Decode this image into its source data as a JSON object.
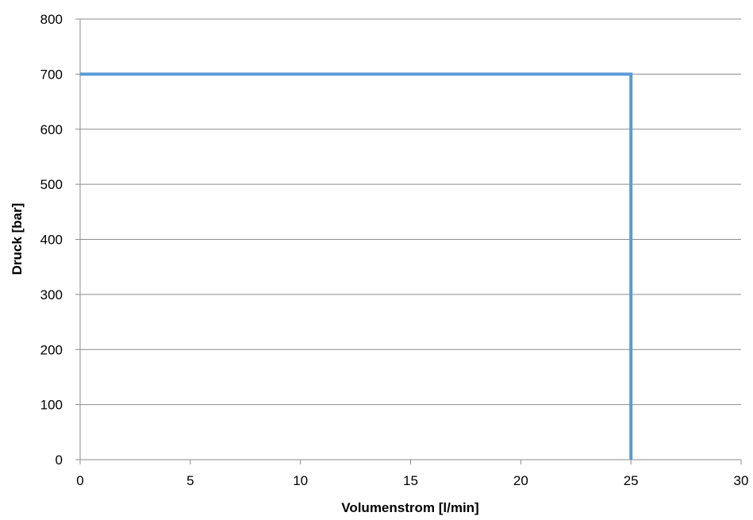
{
  "chart_data": {
    "type": "line",
    "title": "",
    "xlabel": "Volumenstrom [l/min]",
    "ylabel": "Druck  [bar]",
    "xlim": [
      0,
      30
    ],
    "ylim": [
      0,
      800
    ],
    "xticks": [
      0,
      5,
      10,
      15,
      20,
      25,
      30
    ],
    "yticks": [
      0,
      100,
      200,
      300,
      400,
      500,
      600,
      700,
      800
    ],
    "x_tick_labels": [
      "0",
      "5",
      "10",
      "15",
      "20",
      "25",
      "30"
    ],
    "y_tick_labels": [
      "0",
      "100",
      "200",
      "300",
      "400",
      "500",
      "600",
      "700",
      "800"
    ],
    "grid": "horizontal",
    "legend": "none",
    "series": [
      {
        "x": [
          0,
          25,
          25
        ],
        "y": [
          700,
          700,
          0
        ],
        "color": "#5B9BD5"
      }
    ]
  }
}
